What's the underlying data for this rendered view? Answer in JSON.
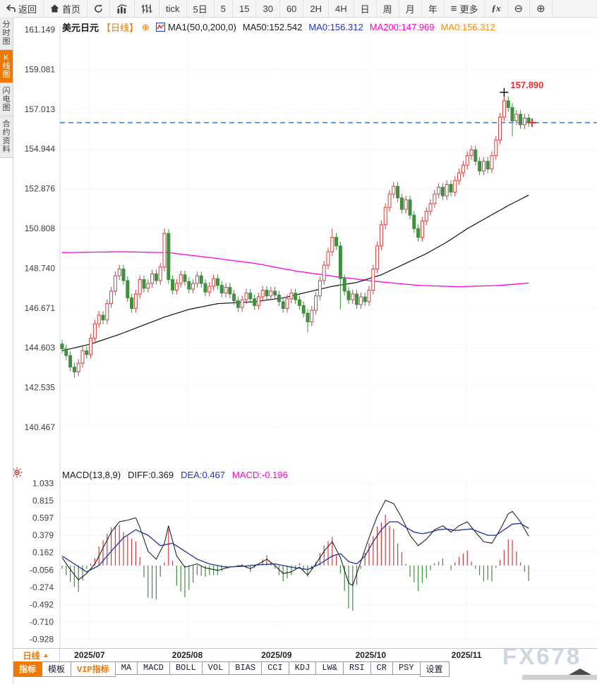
{
  "toolbar": {
    "items": [
      {
        "name": "back-button",
        "icon": "back",
        "label": "返回"
      },
      {
        "name": "home-button",
        "icon": "home",
        "label": "首页"
      },
      {
        "name": "refresh-button",
        "icon": "refresh",
        "label": ""
      },
      {
        "name": "line-chart-button",
        "icon": "barchart",
        "label": ""
      },
      {
        "name": "candle-chart-button",
        "icon": "candles",
        "label": ""
      },
      {
        "name": "tick-button",
        "icon": "",
        "label": "tick"
      },
      {
        "name": "period-5d-button",
        "icon": "",
        "label": "5日"
      },
      {
        "name": "period-5-button",
        "icon": "",
        "label": "5"
      },
      {
        "name": "period-15-button",
        "icon": "",
        "label": "15"
      },
      {
        "name": "period-30-button",
        "icon": "",
        "label": "30"
      },
      {
        "name": "period-60-button",
        "icon": "",
        "label": "60"
      },
      {
        "name": "period-2h-button",
        "icon": "",
        "label": "2H"
      },
      {
        "name": "period-4h-button",
        "icon": "",
        "label": "4H"
      },
      {
        "name": "period-day-button",
        "icon": "",
        "label": "日"
      },
      {
        "name": "period-week-button",
        "icon": "",
        "label": "周"
      },
      {
        "name": "period-month-button",
        "icon": "",
        "label": "月"
      },
      {
        "name": "period-year-button",
        "icon": "",
        "label": "年"
      },
      {
        "name": "more-button",
        "icon": "menu",
        "label": "更多"
      },
      {
        "name": "fx-indicator-button",
        "icon": "fx",
        "label": ""
      },
      {
        "name": "zoom-out-button",
        "icon": "zoomout",
        "label": ""
      },
      {
        "name": "zoom-in-button",
        "icon": "zoomin",
        "label": ""
      }
    ]
  },
  "sidebar": {
    "items": [
      {
        "name": "sidebar-item-time-chart",
        "label": "分时图",
        "active": false
      },
      {
        "name": "sidebar-item-kline-chart",
        "label": "K线图",
        "active": true
      },
      {
        "name": "sidebar-item-lightning-chart",
        "label": "闪电图",
        "active": false
      },
      {
        "name": "sidebar-item-contract-info",
        "label": "合约资料",
        "active": false
      }
    ]
  },
  "header": {
    "symbol": "美元日元",
    "period": "【日线】",
    "plus": "⊕",
    "ma_settings": "MA1(50,0,200,0)",
    "ma50": "MA50:152.542",
    "ma0_blue": "MA0:156.312",
    "ma200": "MA200:147.969",
    "ma0_orange": "MA0:156.312"
  },
  "macd_header": {
    "title": "MACD(13,8,9)",
    "diff": "DIFF:0.369",
    "dea": "DEA:0.467",
    "macd": "MACD:-0.196"
  },
  "bottom": {
    "timeframe_label": "日线",
    "timeframe_arrow": "▲",
    "tabs": [
      {
        "name": "tab-indicators",
        "label": "指标",
        "active": true,
        "vip": false
      },
      {
        "name": "tab-templates",
        "label": "模板",
        "active": false,
        "vip": false
      },
      {
        "name": "tab-vip-indicators",
        "label": "VIP指标",
        "active": false,
        "vip": true
      },
      {
        "name": "tab-ma",
        "label": "MA",
        "active": false,
        "vip": false
      },
      {
        "name": "tab-macd",
        "label": "MACD",
        "active": false,
        "vip": false
      },
      {
        "name": "tab-boll",
        "label": "BOLL",
        "active": false,
        "vip": false
      },
      {
        "name": "tab-vol",
        "label": "VOL",
        "active": false,
        "vip": false
      },
      {
        "name": "tab-bias",
        "label": "BIAS",
        "active": false,
        "vip": false
      },
      {
        "name": "tab-cci",
        "label": "CCI",
        "active": false,
        "vip": false
      },
      {
        "name": "tab-kdj",
        "label": "KDJ",
        "active": false,
        "vip": false
      },
      {
        "name": "tab-lw",
        "label": "LW&",
        "active": false,
        "vip": false
      },
      {
        "name": "tab-rsi",
        "label": "RSI",
        "active": false,
        "vip": false
      },
      {
        "name": "tab-cr",
        "label": "CR",
        "active": false,
        "vip": false
      },
      {
        "name": "tab-psy",
        "label": "PSY",
        "active": false,
        "vip": false
      },
      {
        "name": "tab-settings",
        "label": "设置",
        "active": false,
        "vip": false
      }
    ]
  },
  "watermark": "FX678",
  "colors": {
    "up": "#cc4040",
    "down": "#3f8f3f",
    "ma50": "#111111",
    "ma200": "#ff00ee",
    "dea": "#223399",
    "diff": "#111111",
    "current_price_line": "#1e80ff",
    "accent": "#f07800",
    "annotation": "#e03030"
  },
  "chart_data": {
    "type": "candlestick-with-macd",
    "title": "美元日元 日线",
    "price_axis_ticks": [
      "161.149",
      "159.081",
      "157.013",
      "154.944",
      "152.876",
      "150.808",
      "148.740",
      "146.671",
      "144.603",
      "142.535",
      "140.467"
    ],
    "macd_axis_ticks": [
      "1.033",
      "0.815",
      "0.597",
      "0.379",
      "0.162",
      "-0.056",
      "-0.274",
      "-0.492",
      "-0.710",
      "-0.928"
    ],
    "months": [
      {
        "label": "2025/07",
        "day": 6.7
      },
      {
        "label": "2025/08",
        "day": 30.6
      },
      {
        "label": "2025/09",
        "day": 52.4
      },
      {
        "label": "2025/10",
        "day": 75.4
      },
      {
        "label": "2025/11",
        "day": 98.8
      }
    ],
    "current_price": 156.312,
    "annotation": {
      "text": "157.890",
      "price": 157.89,
      "day": 108
    },
    "candles": {
      "first_open": 144.8,
      "default_wick": 0.22,
      "closes": [
        144.55,
        144.2,
        143.6,
        143.35,
        143.8,
        144.45,
        144.25,
        145.1,
        145.85,
        146.3,
        146.05,
        146.9,
        147.55,
        148.35,
        148.7,
        148.1,
        147.2,
        146.65,
        147.4,
        148.15,
        147.7,
        147.95,
        148.45,
        148.1,
        148.8,
        150.55,
        148.15,
        147.6,
        147.95,
        148.4,
        148.05,
        147.65,
        147.95,
        148.35,
        147.95,
        147.5,
        147.8,
        148.2,
        147.85,
        147.45,
        147.75,
        147.4,
        147.05,
        146.7,
        147.1,
        147.45,
        147.15,
        146.8,
        147.25,
        147.6,
        147.3,
        147.55,
        147.35,
        147.0,
        146.65,
        147.15,
        147.45,
        147.1,
        146.8,
        146.4,
        145.95,
        146.55,
        147.3,
        148.1,
        148.9,
        149.6,
        150.35,
        149.9,
        148.2,
        147.55,
        147.1,
        147.4,
        146.85,
        147.25,
        147.0,
        147.6,
        148.7,
        149.9,
        151.0,
        151.9,
        152.6,
        153.0,
        152.4,
        151.8,
        152.3,
        151.5,
        150.8,
        150.35,
        151.2,
        151.7,
        152.1,
        152.6,
        152.95,
        152.5,
        153.1,
        152.7,
        153.3,
        153.7,
        154.1,
        154.6,
        154.9,
        154.3,
        153.8,
        154.3,
        153.9,
        154.6,
        155.4,
        156.6,
        157.45,
        157.1,
        156.4,
        156.75,
        156.2,
        156.55,
        156.31
      ],
      "wick_overrides": {
        "3": {
          "low": 143.05
        },
        "25": {
          "high": 150.8
        },
        "60": {
          "low": 145.4
        },
        "66": {
          "high": 150.8
        },
        "68": {
          "low": 146.6
        },
        "108": {
          "high": 157.89
        },
        "110": {
          "low": 155.6
        }
      }
    },
    "ma50_points": [
      [
        0,
        144.45
      ],
      [
        7,
        144.8
      ],
      [
        14,
        145.3
      ],
      [
        25,
        146.2
      ],
      [
        31,
        146.6
      ],
      [
        38,
        146.9
      ],
      [
        47,
        147.0
      ],
      [
        54,
        147.2
      ],
      [
        60,
        147.5
      ],
      [
        66,
        147.8
      ],
      [
        72,
        148.0
      ],
      [
        78,
        148.4
      ],
      [
        84,
        149.0
      ],
      [
        89,
        149.5
      ],
      [
        94,
        150.1
      ],
      [
        99,
        150.8
      ],
      [
        104,
        151.4
      ],
      [
        109,
        152.0
      ],
      [
        114,
        152.542
      ]
    ],
    "ma200_points": [
      [
        0,
        149.55
      ],
      [
        14,
        149.6
      ],
      [
        26,
        149.55
      ],
      [
        36,
        149.3
      ],
      [
        47,
        149.0
      ],
      [
        57,
        148.6
      ],
      [
        67,
        148.3
      ],
      [
        77,
        148.05
      ],
      [
        87,
        147.85
      ],
      [
        97,
        147.78
      ],
      [
        107,
        147.85
      ],
      [
        114,
        147.969
      ]
    ],
    "macd": {
      "hist_multiplier": 2,
      "diff_points": [
        [
          0,
          0.1
        ],
        [
          2,
          -0.05
        ],
        [
          4,
          -0.18
        ],
        [
          6,
          -0.1
        ],
        [
          8,
          0.02
        ],
        [
          10,
          0.22
        ],
        [
          12,
          0.42
        ],
        [
          14,
          0.55
        ],
        [
          16,
          0.57
        ],
        [
          18,
          0.6
        ],
        [
          19,
          0.48
        ],
        [
          21,
          0.18
        ],
        [
          23,
          0.08
        ],
        [
          25,
          0.28
        ],
        [
          26,
          0.5
        ],
        [
          28,
          0.12
        ],
        [
          30,
          -0.02
        ],
        [
          33,
          0.02
        ],
        [
          35,
          -0.03
        ],
        [
          38,
          -0.06
        ],
        [
          41,
          -0.02
        ],
        [
          44,
          0.0
        ],
        [
          46,
          -0.04
        ],
        [
          48,
          0.02
        ],
        [
          50,
          0.08
        ],
        [
          52,
          0.0
        ],
        [
          54,
          -0.1
        ],
        [
          56,
          -0.08
        ],
        [
          58,
          -0.02
        ],
        [
          60,
          -0.12
        ],
        [
          62,
          0.02
        ],
        [
          64,
          0.18
        ],
        [
          66,
          0.3
        ],
        [
          68,
          0.1
        ],
        [
          70,
          -0.22
        ],
        [
          71,
          -0.25
        ],
        [
          73,
          0.05
        ],
        [
          75,
          0.35
        ],
        [
          77,
          0.62
        ],
        [
          79,
          0.82
        ],
        [
          81,
          0.78
        ],
        [
          83,
          0.6
        ],
        [
          85,
          0.38
        ],
        [
          87,
          0.25
        ],
        [
          89,
          0.33
        ],
        [
          91,
          0.45
        ],
        [
          93,
          0.5
        ],
        [
          95,
          0.42
        ],
        [
          97,
          0.5
        ],
        [
          99,
          0.55
        ],
        [
          101,
          0.42
        ],
        [
          103,
          0.3
        ],
        [
          105,
          0.28
        ],
        [
          107,
          0.45
        ],
        [
          109,
          0.65
        ],
        [
          110,
          0.68
        ],
        [
          112,
          0.55
        ],
        [
          114,
          0.369
        ]
      ],
      "dea_points": [
        [
          0,
          0.12
        ],
        [
          3,
          0.02
        ],
        [
          6,
          -0.08
        ],
        [
          9,
          0.0
        ],
        [
          12,
          0.18
        ],
        [
          15,
          0.35
        ],
        [
          18,
          0.45
        ],
        [
          21,
          0.38
        ],
        [
          24,
          0.25
        ],
        [
          27,
          0.28
        ],
        [
          30,
          0.18
        ],
        [
          33,
          0.08
        ],
        [
          36,
          0.02
        ],
        [
          40,
          -0.02
        ],
        [
          44,
          -0.01
        ],
        [
          48,
          0.01
        ],
        [
          52,
          0.02
        ],
        [
          56,
          -0.02
        ],
        [
          60,
          -0.05
        ],
        [
          63,
          0.02
        ],
        [
          66,
          0.12
        ],
        [
          68,
          0.15
        ],
        [
          70,
          0.05
        ],
        [
          72,
          0.02
        ],
        [
          74,
          0.12
        ],
        [
          76,
          0.3
        ],
        [
          78,
          0.45
        ],
        [
          80,
          0.55
        ],
        [
          82,
          0.55
        ],
        [
          84,
          0.48
        ],
        [
          86,
          0.42
        ],
        [
          88,
          0.4
        ],
        [
          90,
          0.42
        ],
        [
          92,
          0.45
        ],
        [
          94,
          0.46
        ],
        [
          96,
          0.44
        ],
        [
          98,
          0.45
        ],
        [
          100,
          0.46
        ],
        [
          102,
          0.42
        ],
        [
          104,
          0.38
        ],
        [
          106,
          0.38
        ],
        [
          108,
          0.45
        ],
        [
          110,
          0.52
        ],
        [
          112,
          0.53
        ],
        [
          114,
          0.467
        ]
      ]
    }
  }
}
